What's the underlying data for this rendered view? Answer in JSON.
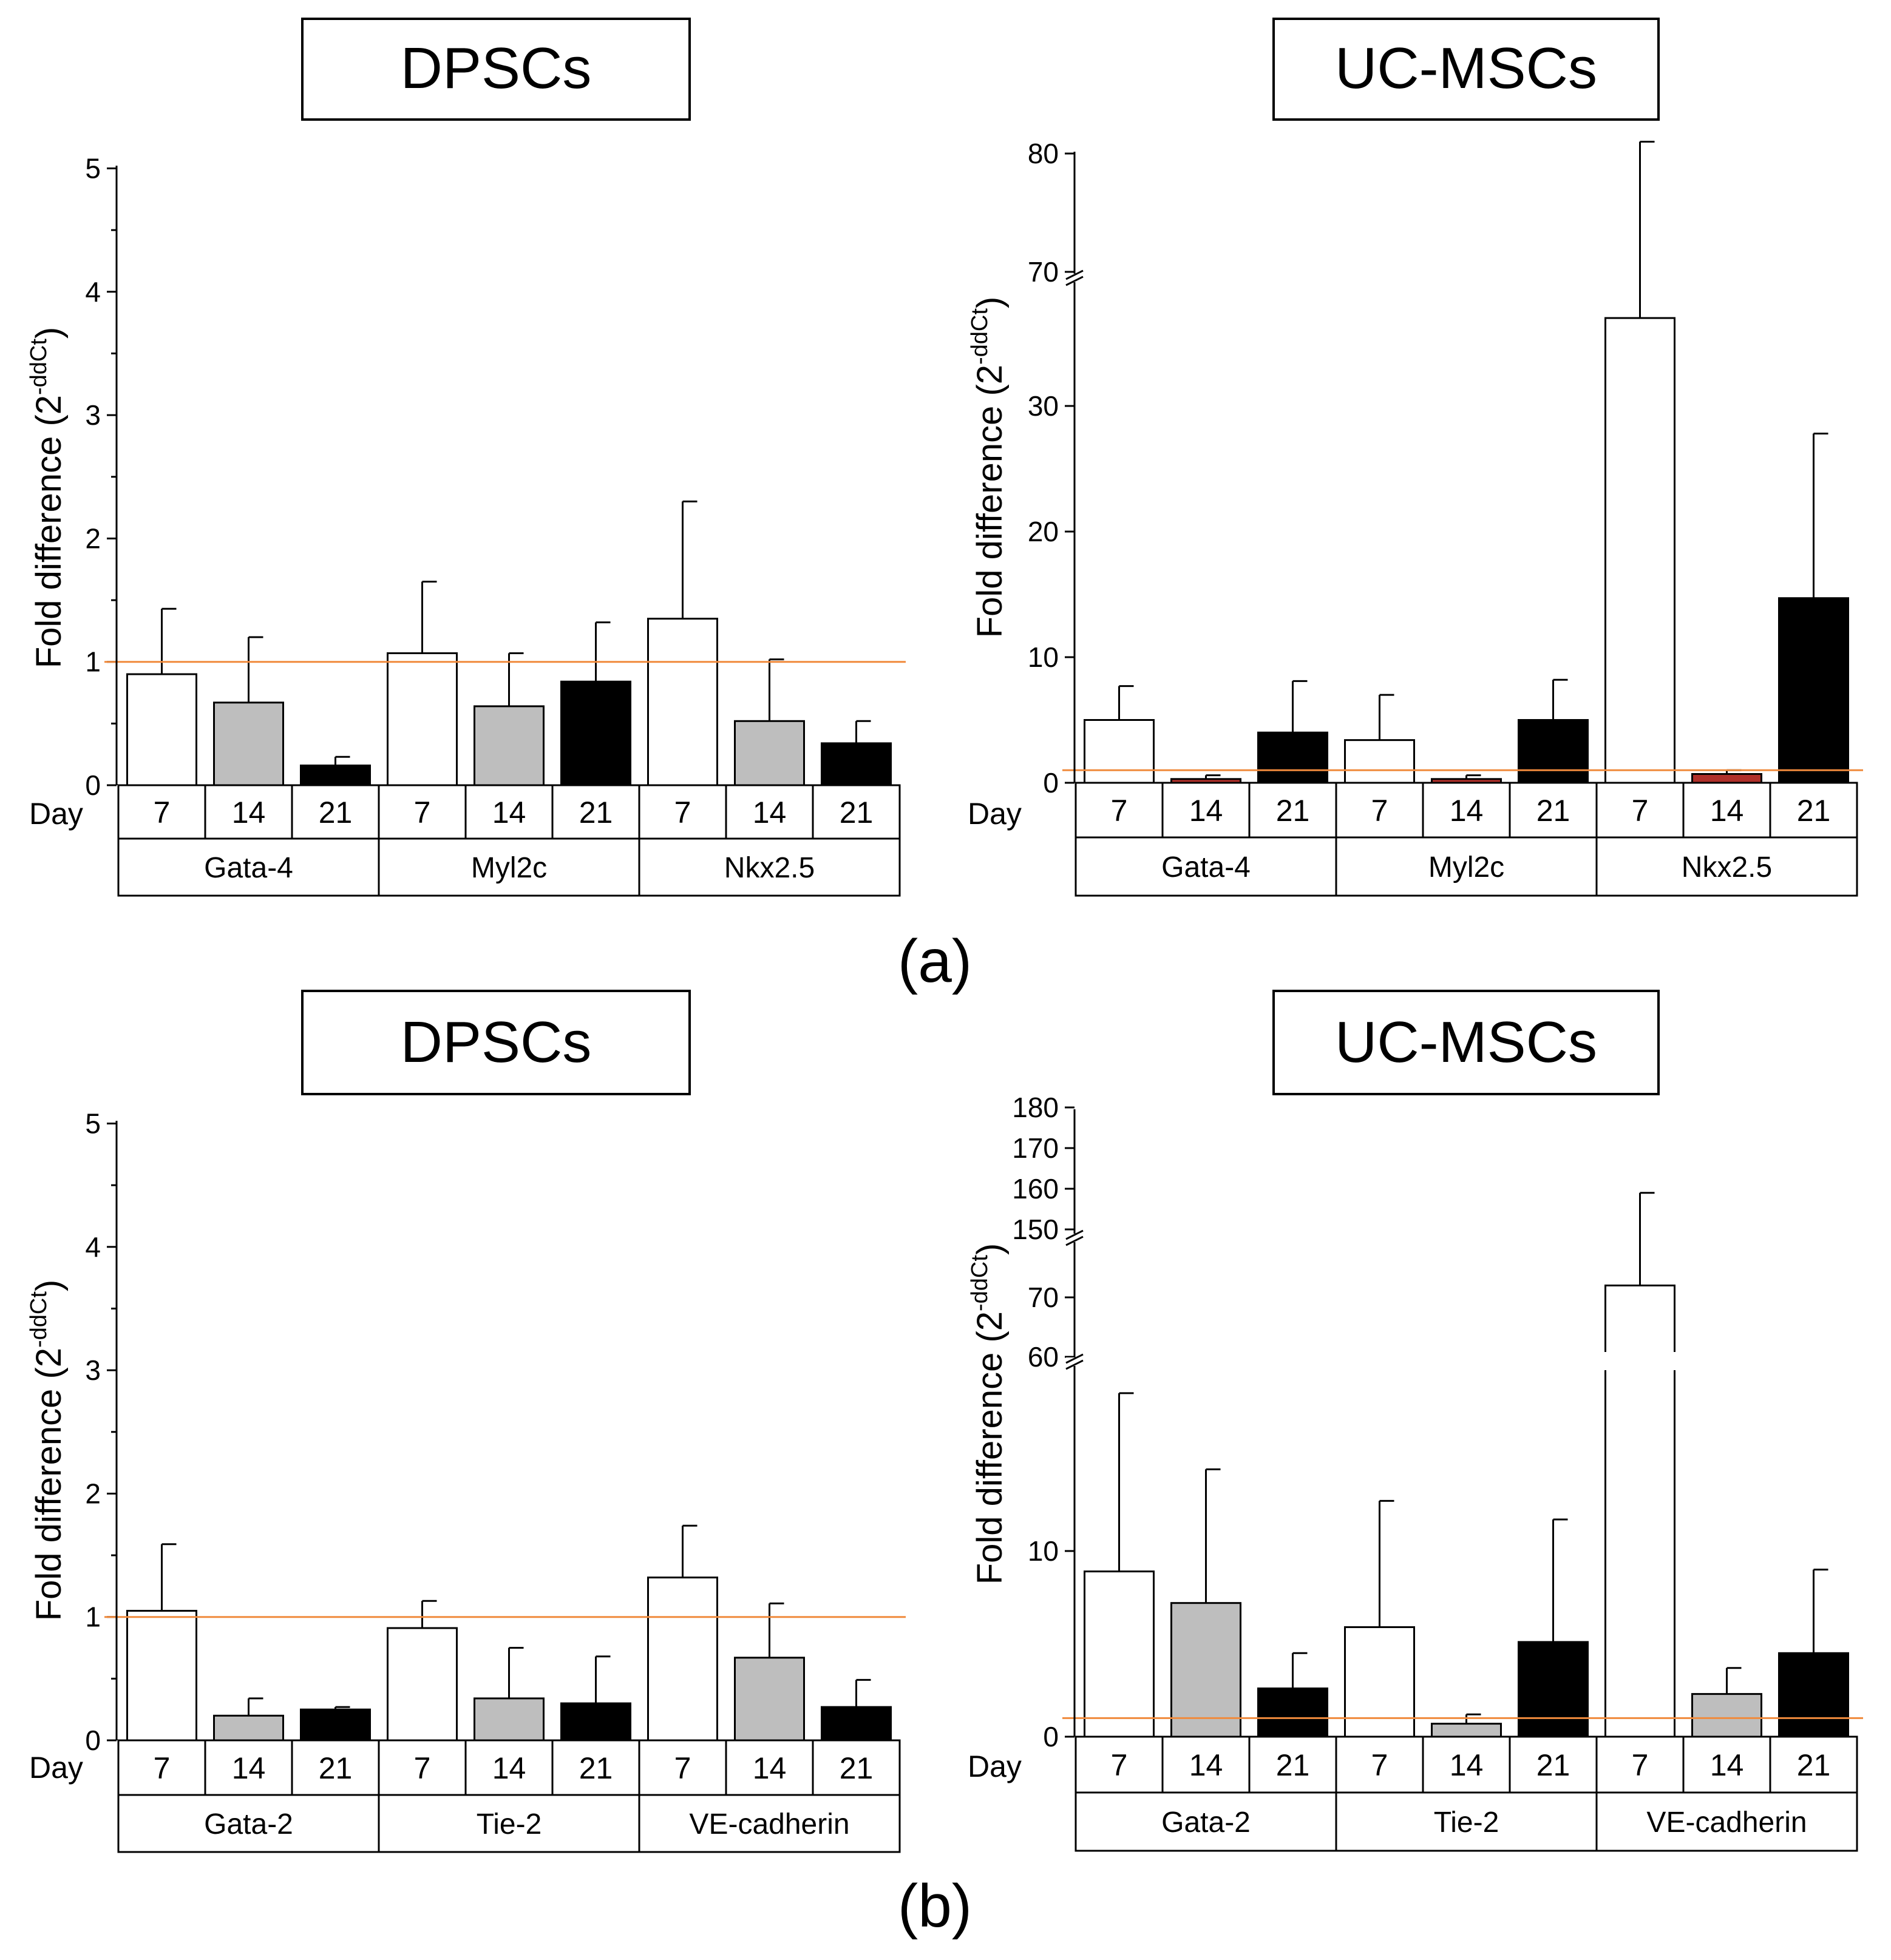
{
  "panel_labels": [
    "(a)",
    "(b)"
  ],
  "colors": {
    "day7": "#ffffff",
    "day14": "#bebebe",
    "day14_red": "#b0302a",
    "day21": "#000000",
    "reference_line": "#f08a3c",
    "axis": "#000000"
  },
  "chart_data": [
    {
      "id": "a-dpscs",
      "type": "bar",
      "title": "DPSCs",
      "ylabel": "Fold difference (2",
      "ylabel_sup": "-ddCt",
      "ylabel_close": ")",
      "xlabel": "Day",
      "ylim": [
        0,
        5
      ],
      "yticks": [
        0,
        1,
        2,
        3,
        4,
        5
      ],
      "reference_line": 1,
      "day_labels": [
        "7",
        "14",
        "21"
      ],
      "groups": [
        {
          "name": "Gata-4",
          "values": [
            0.9,
            0.67,
            0.16
          ],
          "errors": [
            0.53,
            0.53,
            0.07
          ]
        },
        {
          "name": "Myl2c",
          "values": [
            1.07,
            0.64,
            0.84
          ],
          "errors": [
            0.58,
            0.43,
            0.48
          ]
        },
        {
          "name": "Nkx2.5",
          "values": [
            1.35,
            0.52,
            0.34
          ],
          "errors": [
            0.95,
            0.5,
            0.18
          ]
        }
      ]
    },
    {
      "id": "a-ucmscs",
      "type": "bar",
      "title": "UC-MSCs",
      "ylabel": "Fold difference (2",
      "ylabel_sup": "-ddCt",
      "ylabel_close": ")",
      "xlabel": "Day",
      "ylim": [
        0,
        80
      ],
      "axis_break": [
        39,
        69
      ],
      "yticks": [
        0,
        10,
        20,
        30,
        70,
        80
      ],
      "reference_line": 1,
      "day_labels": [
        "7",
        "14",
        "21"
      ],
      "groups": [
        {
          "name": "Gata-4",
          "values": [
            5.0,
            0.3,
            4.0
          ],
          "errors": [
            2.7,
            0.3,
            4.1
          ]
        },
        {
          "name": "Myl2c",
          "values": [
            3.4,
            0.3,
            5.0
          ],
          "errors": [
            3.6,
            0.3,
            3.2
          ]
        },
        {
          "name": "Nkx2.5",
          "values": [
            37,
            0.7,
            14.7
          ],
          "errors": [
            44,
            0.3,
            13.1
          ]
        }
      ],
      "red_day14": true
    },
    {
      "id": "b-dpscs",
      "type": "bar",
      "title": "DPSCs",
      "ylabel": "Fold difference (2",
      "ylabel_sup": "-ddCt",
      "ylabel_close": ")",
      "xlabel": "Day",
      "ylim": [
        0,
        5
      ],
      "yticks": [
        0,
        1,
        2,
        3,
        4,
        5
      ],
      "reference_line": 1,
      "day_labels": [
        "7",
        "14",
        "21"
      ],
      "groups": [
        {
          "name": "Gata-2",
          "values": [
            1.05,
            0.2,
            0.25
          ],
          "errors": [
            0.54,
            0.14,
            0.02
          ]
        },
        {
          "name": "Tie-2",
          "values": [
            0.91,
            0.34,
            0.3
          ],
          "errors": [
            0.22,
            0.41,
            0.38
          ]
        },
        {
          "name": "VE-cadherin",
          "values": [
            1.32,
            0.67,
            0.27
          ],
          "errors": [
            0.42,
            0.44,
            0.22
          ]
        }
      ]
    },
    {
      "id": "b-ucmscs",
      "type": "bar",
      "title": "UC-MSCs",
      "ylabel": "Fold difference (2",
      "ylabel_sup": "-ddCt",
      "ylabel_close": ")",
      "xlabel": "Day",
      "ylim": [
        0,
        180
      ],
      "axis_break": [
        [
          18.5,
          59
        ],
        [
          77,
          149
        ]
      ],
      "yticks": [
        0,
        10,
        60,
        70,
        150,
        160,
        170,
        180
      ],
      "reference_line": 1,
      "day_labels": [
        "7",
        "14",
        "21"
      ],
      "groups": [
        {
          "name": "Gata-2",
          "values": [
            8.9,
            7.2,
            2.6
          ],
          "errors": [
            9.6,
            7.2,
            1.9
          ]
        },
        {
          "name": "Tie-2",
          "values": [
            5.9,
            0.7,
            5.1
          ],
          "errors": [
            6.8,
            0.5,
            6.6
          ]
        },
        {
          "name": "VE-cadherin",
          "values": [
            72,
            2.3,
            4.5
          ],
          "errors": [
            87,
            1.4,
            4.5
          ]
        }
      ]
    }
  ]
}
